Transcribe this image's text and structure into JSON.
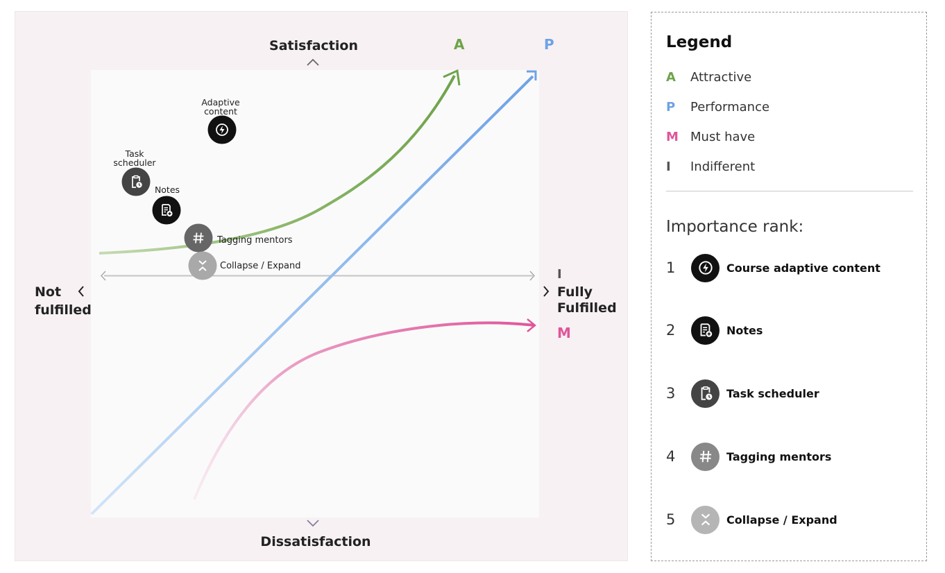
{
  "diagram": {
    "title": "",
    "axes": {
      "top": "Satisfaction",
      "bottom": "Dissatisfaction",
      "left_line1": "Not",
      "left_line2": "fulfilled",
      "right_line1": "Fully",
      "right_line2": "Fulfilled"
    },
    "curves": [
      {
        "letter": "A",
        "color": "#6ea34a"
      },
      {
        "letter": "P",
        "color": "#6ea2e6"
      },
      {
        "letter": "M",
        "color": "#e0559a"
      },
      {
        "letter": "I",
        "color": "#555555"
      }
    ],
    "features": [
      {
        "label": "Adaptive content",
        "label_line1": "Adaptive",
        "label_line2": "content",
        "icon": "lightning-icon",
        "color": "#111111"
      },
      {
        "label": "Task scheduler",
        "label_line1": "Task",
        "label_line2": "scheduler",
        "icon": "clipboard-clock-icon",
        "color": "#444444"
      },
      {
        "label": "Notes",
        "icon": "notes-icon",
        "color": "#111111"
      },
      {
        "label": "Tagging mentors",
        "icon": "hash-icon",
        "color": "#666666"
      },
      {
        "label": "Collapse / Expand",
        "icon": "collapse-expand-icon",
        "color": "#a9a9a9"
      }
    ]
  },
  "legend": {
    "title": "Legend",
    "items": [
      {
        "letter": "A",
        "label": "Attractive",
        "color": "#6ea34a"
      },
      {
        "letter": "P",
        "label": "Performance",
        "color": "#6ea2e6"
      },
      {
        "letter": "M",
        "label": "Must have",
        "color": "#e0559a"
      },
      {
        "letter": "I",
        "label": "Indifferent",
        "color": "#555555"
      }
    ]
  },
  "importance": {
    "title": "Importance rank:",
    "items": [
      {
        "rank": "1",
        "label": "Course adaptive content",
        "icon": "lightning-icon",
        "color": "#111111"
      },
      {
        "rank": "2",
        "label": "Notes",
        "icon": "notes-icon",
        "color": "#111111"
      },
      {
        "rank": "3",
        "label": "Task scheduler",
        "icon": "clipboard-clock-icon",
        "color": "#444444"
      },
      {
        "rank": "4",
        "label": "Tagging mentors",
        "icon": "hash-icon",
        "color": "#888888"
      },
      {
        "rank": "5",
        "label": "Collapse / Expand",
        "icon": "collapse-expand-icon",
        "color": "#b5b5b5"
      }
    ]
  }
}
